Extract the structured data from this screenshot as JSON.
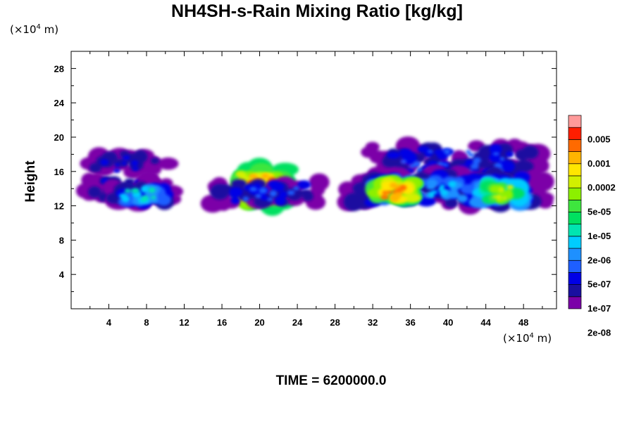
{
  "chart_data": {
    "type": "heatmap",
    "title": "NH4SH-s-Rain Mixing Ratio [kg/kg]",
    "ylabel": "Height",
    "xlabel": "",
    "y_unit": {
      "prefix": "(×10",
      "exp": "4",
      "suffix": " m)"
    },
    "x_unit": {
      "prefix": "(×10",
      "exp": "4",
      "suffix": " m)"
    },
    "xlim": [
      0,
      51.5
    ],
    "ylim": [
      0,
      30
    ],
    "x_ticks": [
      "4",
      "8",
      "12",
      "16",
      "20",
      "24",
      "28",
      "32",
      "36",
      "40",
      "44",
      "48"
    ],
    "x_tick_values": [
      4,
      8,
      12,
      16,
      20,
      24,
      28,
      32,
      36,
      40,
      44,
      48
    ],
    "y_ticks": [
      "4",
      "8",
      "12",
      "16",
      "20",
      "24",
      "28"
    ],
    "y_tick_values": [
      4,
      8,
      12,
      16,
      20,
      24,
      28
    ],
    "colorbar": {
      "labels": [
        "0.005",
        "0.001",
        "0.0002",
        "5e-05",
        "1e-05",
        "2e-06",
        "5e-07",
        "1e-07",
        "2e-08"
      ],
      "colors": [
        "#7b00a8",
        "#1a0fa0",
        "#0000e6",
        "#1e5fff",
        "#1e90ff",
        "#00ccff",
        "#00e5b0",
        "#00e060",
        "#3ee63e",
        "#8cf000",
        "#d2f000",
        "#ffe600",
        "#ffb400",
        "#ff6a00",
        "#ff1e00",
        "#ff9a9a"
      ]
    },
    "regions": [
      {
        "name": "upper-left-cloud",
        "x": [
          0,
          11.5
        ],
        "y": [
          15.5,
          18.5
        ],
        "level": 2
      },
      {
        "name": "upper-left-layer",
        "x": [
          0,
          12
        ],
        "y": [
          12.5,
          15.5
        ],
        "level": 2
      },
      {
        "name": "left-cells",
        "x": [
          4,
          11
        ],
        "y": [
          12.2,
          14.5
        ],
        "level": 6
      },
      {
        "name": "central-core",
        "x": [
          17,
          23
        ],
        "y": [
          12,
          16.5
        ],
        "level": 13
      },
      {
        "name": "central-anvil",
        "x": [
          14,
          27.5
        ],
        "y": [
          12,
          15
        ],
        "level": 3
      },
      {
        "name": "right-cloud-top",
        "x": [
          29.5,
          51.5
        ],
        "y": [
          15,
          19.3
        ],
        "level": 3
      },
      {
        "name": "right-cloud-layer",
        "x": [
          28,
          51.5
        ],
        "y": [
          12,
          15.8
        ],
        "level": 5
      },
      {
        "name": "right-core",
        "x": [
          32,
          37
        ],
        "y": [
          12.3,
          15
        ],
        "level": 13
      },
      {
        "name": "far-right-core",
        "x": [
          43,
          48
        ],
        "y": [
          12.2,
          14.8
        ],
        "level": 10
      }
    ]
  },
  "time_label": "TIME = 6200000.0"
}
